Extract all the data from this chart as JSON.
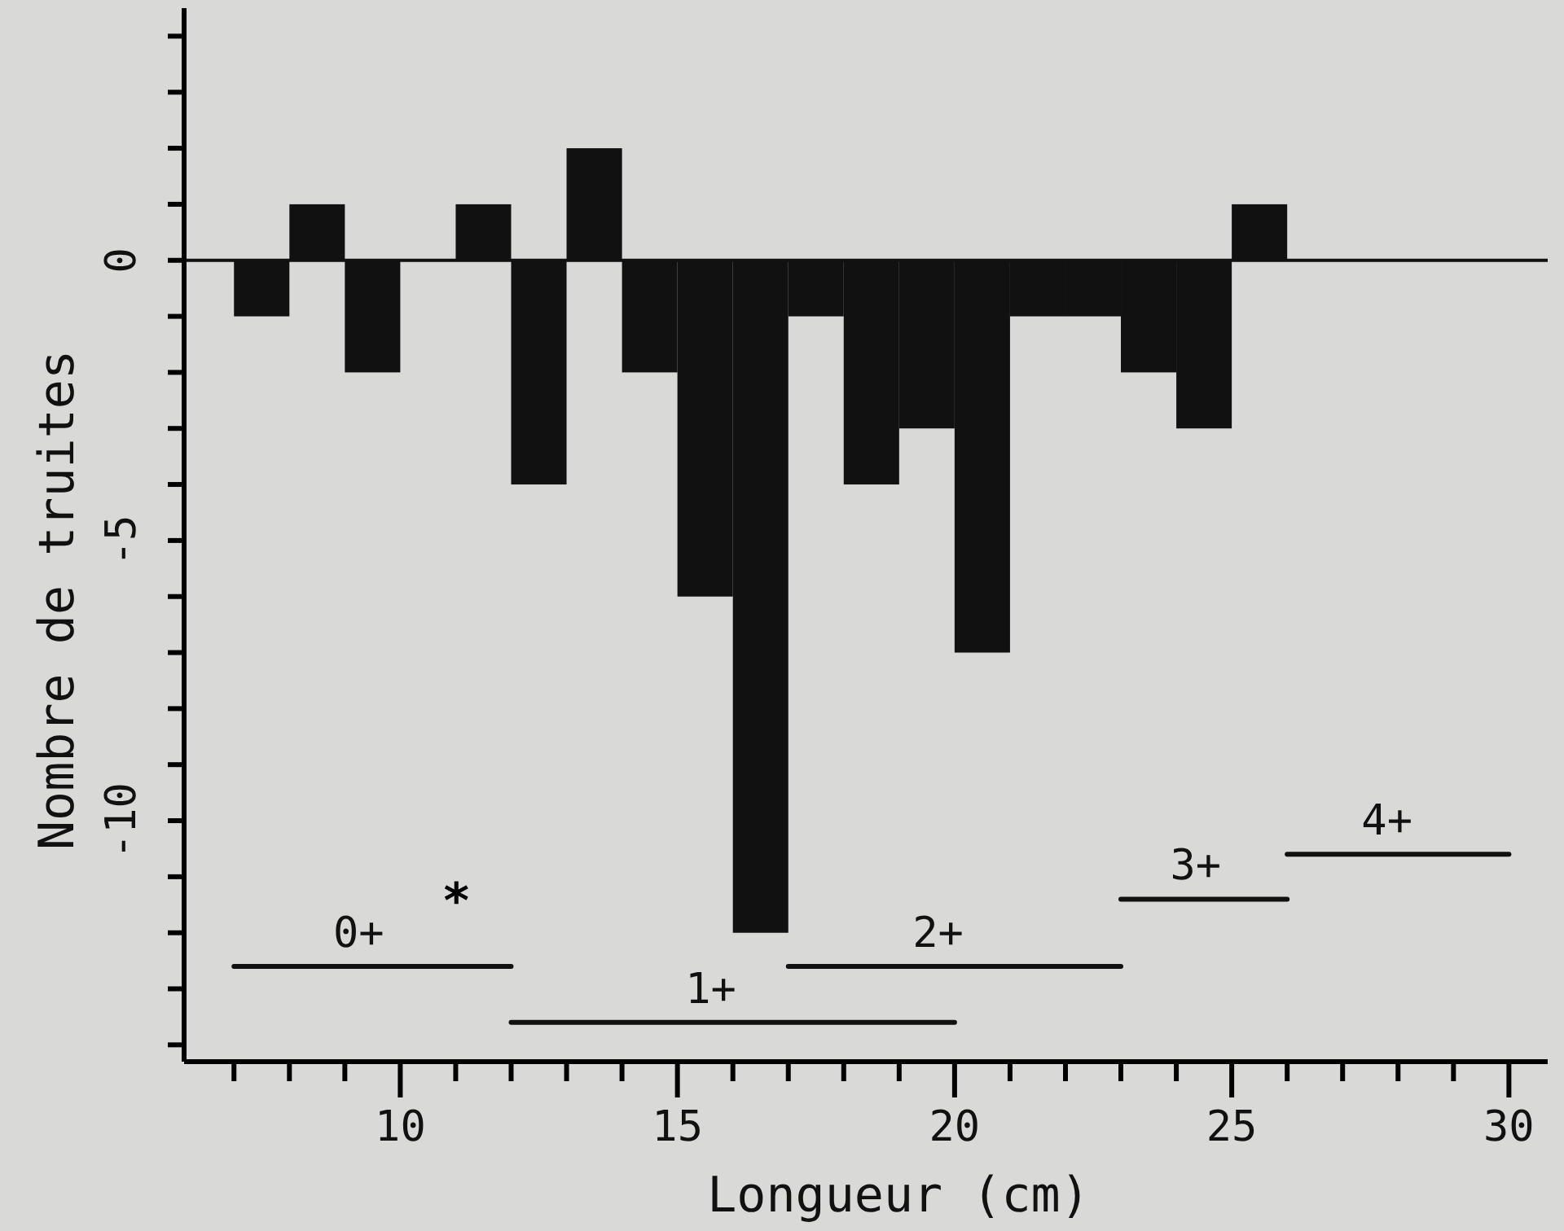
{
  "chart_data": {
    "type": "histogram",
    "xlabel": "Longueur (cm)",
    "ylabel": "Nombre de truites",
    "color": "#111111",
    "bins": [
      7,
      8,
      9,
      10,
      11,
      12,
      13,
      14,
      15,
      16,
      17,
      18,
      19,
      20,
      21,
      22,
      23,
      24,
      25,
      26
    ],
    "values": [
      -1,
      1,
      -2,
      0,
      1,
      -4,
      2,
      -2,
      -6,
      -12,
      -1,
      -4,
      -3,
      -7,
      -1,
      -1,
      -2,
      -3,
      1
    ],
    "series": [
      {
        "name": "0+",
        "type": "line",
        "color": "#111111",
        "x": [
          7,
          12
        ],
        "values": [
          -12.6,
          -12.6
        ]
      },
      {
        "name": "1+",
        "type": "line",
        "color": "#111111",
        "x": [
          12,
          20
        ],
        "values": [
          -13.6,
          -13.6
        ]
      },
      {
        "name": "2+",
        "type": "line",
        "color": "#111111",
        "x": [
          17,
          23
        ],
        "values": [
          -12.6,
          -12.6
        ]
      },
      {
        "name": "3+",
        "type": "line",
        "color": "#111111",
        "x": [
          23,
          26
        ],
        "values": [
          -11.4,
          -11.4
        ]
      },
      {
        "name": "4+",
        "type": "line",
        "color": "#111111",
        "x": [
          26,
          30
        ],
        "values": [
          -10.6,
          -10.6
        ]
      }
    ],
    "annotations": [
      "*"
    ],
    "xlim": [
      6.1,
      30.7
    ],
    "ylim": [
      -14.3,
      4.5
    ],
    "xticks": [
      {
        "value": 7,
        "label": null
      },
      {
        "value": 8,
        "label": null
      },
      {
        "value": 9,
        "label": null
      },
      10,
      {
        "value": 11,
        "label": null
      },
      {
        "value": 12,
        "label": null
      },
      {
        "value": 13,
        "label": null
      },
      {
        "value": 14,
        "label": null
      },
      15,
      {
        "value": 16,
        "label": null
      },
      {
        "value": 17,
        "label": null
      },
      {
        "value": 18,
        "label": null
      },
      {
        "value": 19,
        "label": null
      },
      20,
      {
        "value": 21,
        "label": null
      },
      {
        "value": 22,
        "label": null
      },
      {
        "value": 23,
        "label": null
      },
      {
        "value": 24,
        "label": null
      },
      25,
      {
        "value": 26,
        "label": null
      },
      {
        "value": 27,
        "label": null
      },
      {
        "value": 28,
        "label": null
      },
      {
        "value": 29,
        "label": null
      },
      30
    ],
    "yticks": [
      {
        "value": -14,
        "label": null
      },
      {
        "value": -13,
        "label": null
      },
      {
        "value": -12,
        "label": null
      },
      {
        "value": -11,
        "label": null
      },
      -10,
      {
        "value": -9,
        "label": null
      },
      {
        "value": -8,
        "label": null
      },
      {
        "value": -7,
        "label": null
      },
      {
        "value": -6,
        "label": null
      },
      -5,
      {
        "value": -4,
        "label": null
      },
      {
        "value": -3,
        "label": null
      },
      {
        "value": -2,
        "label": null
      },
      {
        "value": -1,
        "label": null
      },
      0,
      {
        "value": 1,
        "label": null
      },
      {
        "value": 2,
        "label": null
      },
      {
        "value": 3,
        "label": null
      },
      {
        "value": 4,
        "label": null
      }
    ],
    "grid": false
  }
}
